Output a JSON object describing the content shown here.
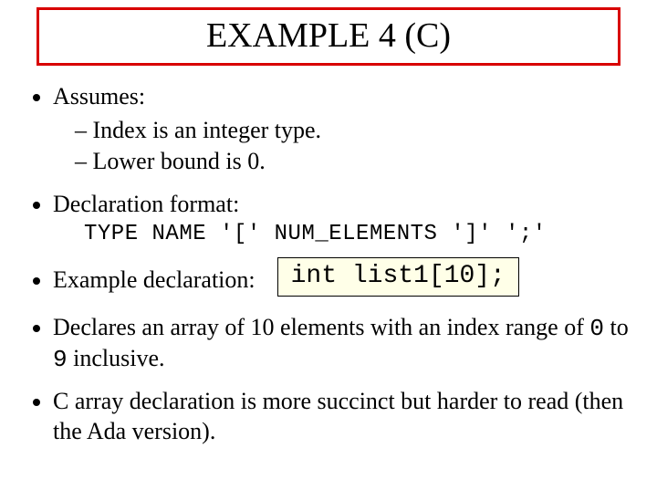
{
  "title": {
    "text": "EXAMPLE 4 (C)",
    "border_color": "#d80000",
    "font_size": 38
  },
  "bullets": {
    "b1": {
      "text": "Assumes:",
      "sub": [
        "Index is an integer type.",
        "Lower bound is 0."
      ]
    },
    "b2": {
      "text": "Declaration format:",
      "format_line": "TYPE NAME '[' NUM_ELEMENTS ']' ';'"
    },
    "b3": {
      "text": "Example declaration:",
      "code": "int list1[10];"
    },
    "b4": {
      "pre": "Declares an array of 10 elements with an index range of ",
      "zero": "0",
      "mid": " to ",
      "nine": "9",
      "post": " inclusive."
    },
    "b5": {
      "text": "C array declaration is more succinct but harder to read (then the Ada version)."
    }
  },
  "colors": {
    "code_box_bg": "#ffffe8",
    "code_box_border": "#000000",
    "text": "#000000",
    "background": "#ffffff"
  }
}
